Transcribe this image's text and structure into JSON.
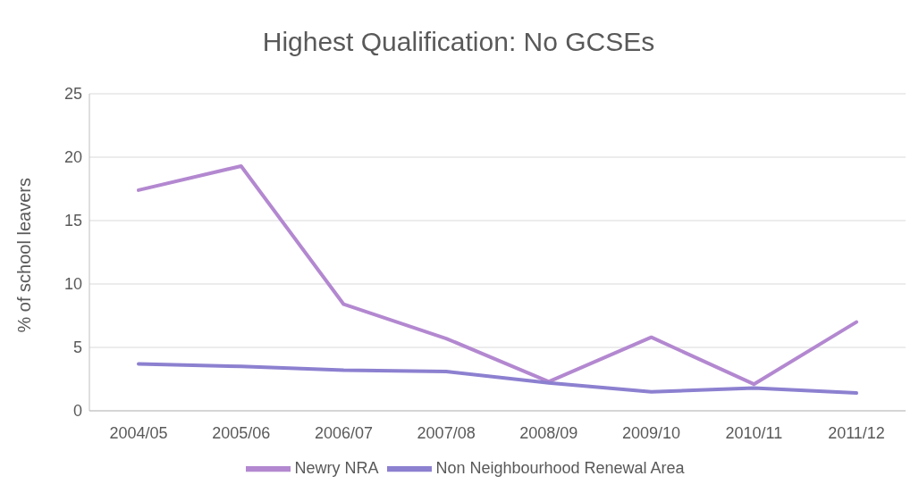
{
  "chart_data": {
    "type": "line",
    "title": "Highest Qualification: No GCSEs",
    "ylabel": "% of school leavers",
    "categories": [
      "2004/05",
      "2005/06",
      "2006/07",
      "2007/08",
      "2008/09",
      "2009/10",
      "2010/11",
      "2011/12"
    ],
    "series": [
      {
        "name": "Newry NRA",
        "color": "#b388d0",
        "values": [
          17.4,
          19.3,
          8.4,
          5.7,
          2.3,
          5.8,
          2.1,
          7.0
        ]
      },
      {
        "name": "Non Neighbourhood Renewal Area",
        "color": "#8c80d0",
        "values": [
          3.7,
          3.5,
          3.2,
          3.1,
          2.2,
          1.5,
          1.8,
          1.4
        ]
      }
    ],
    "ylim": [
      0,
      25
    ],
    "yticks": [
      0,
      5,
      10,
      15,
      20,
      25
    ],
    "grid": "y",
    "legend": "bottom",
    "marker": "none"
  }
}
